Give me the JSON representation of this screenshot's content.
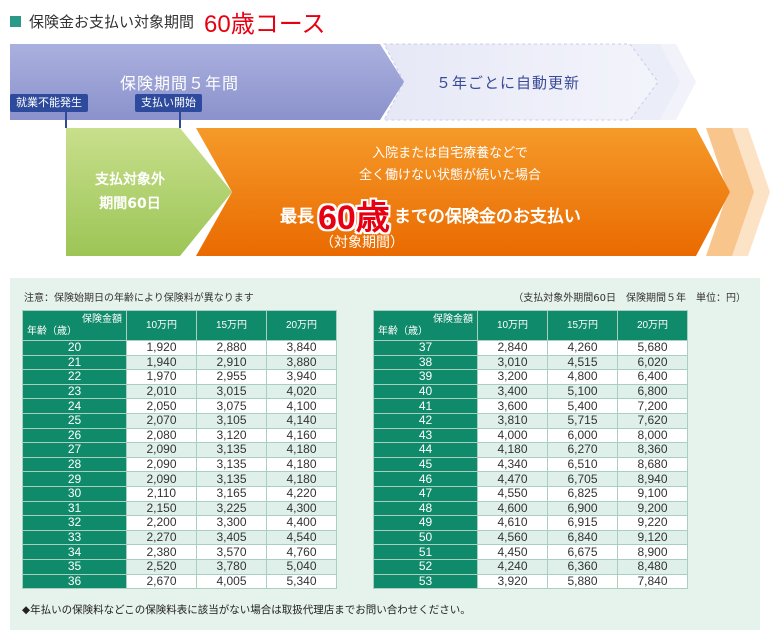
{
  "title": {
    "text": "保険金お支払い対象期間",
    "course": "60歳コース"
  },
  "diagram": {
    "period_label": "保険期間５年間",
    "renew_label": "５年ごとに自動更新",
    "tag_disability": "就業不能発生",
    "tag_payment": "支払い開始",
    "exclusion_line1": "支払対象外",
    "exclusion_line2": "期間60日",
    "condition_line1": "入院または自宅療養などで",
    "condition_line2": "全く働けない状態が続いた場合",
    "main_prefix": "最長",
    "main_age": "60歳",
    "main_suffix": "までの保険金のお支払い",
    "sub_label": "（対象期間）"
  },
  "table": {
    "note_left": "注意：保険始期日の年齢により保険料が異なります",
    "note_right": "（支払対象外期間60日　保険期間５年　単位：円）",
    "corner_top": "保険金額",
    "corner_bottom": "年齢（歳）",
    "amounts": [
      "10万円",
      "15万円",
      "20万円"
    ],
    "left_rows": [
      {
        "age": "20",
        "v": [
          "1,920",
          "2,880",
          "3,840"
        ]
      },
      {
        "age": "21",
        "v": [
          "1,940",
          "2,910",
          "3,880"
        ]
      },
      {
        "age": "22",
        "v": [
          "1,970",
          "2,955",
          "3,940"
        ]
      },
      {
        "age": "23",
        "v": [
          "2,010",
          "3,015",
          "4,020"
        ]
      },
      {
        "age": "24",
        "v": [
          "2,050",
          "3,075",
          "4,100"
        ]
      },
      {
        "age": "25",
        "v": [
          "2,070",
          "3,105",
          "4,140"
        ]
      },
      {
        "age": "26",
        "v": [
          "2,080",
          "3,120",
          "4,160"
        ]
      },
      {
        "age": "27",
        "v": [
          "2,090",
          "3,135",
          "4,180"
        ]
      },
      {
        "age": "28",
        "v": [
          "2,090",
          "3,135",
          "4,180"
        ]
      },
      {
        "age": "29",
        "v": [
          "2,090",
          "3,135",
          "4,180"
        ]
      },
      {
        "age": "30",
        "v": [
          "2,110",
          "3,165",
          "4,220"
        ]
      },
      {
        "age": "31",
        "v": [
          "2,150",
          "3,225",
          "4,300"
        ]
      },
      {
        "age": "32",
        "v": [
          "2,200",
          "3,300",
          "4,400"
        ]
      },
      {
        "age": "33",
        "v": [
          "2,270",
          "3,405",
          "4,540"
        ]
      },
      {
        "age": "34",
        "v": [
          "2,380",
          "3,570",
          "4,760"
        ]
      },
      {
        "age": "35",
        "v": [
          "2,520",
          "3,780",
          "5,040"
        ]
      },
      {
        "age": "36",
        "v": [
          "2,670",
          "4,005",
          "5,340"
        ]
      }
    ],
    "right_rows": [
      {
        "age": "37",
        "v": [
          "2,840",
          "4,260",
          "5,680"
        ]
      },
      {
        "age": "38",
        "v": [
          "3,010",
          "4,515",
          "6,020"
        ]
      },
      {
        "age": "39",
        "v": [
          "3,200",
          "4,800",
          "6,400"
        ]
      },
      {
        "age": "40",
        "v": [
          "3,400",
          "5,100",
          "6,800"
        ]
      },
      {
        "age": "41",
        "v": [
          "3,600",
          "5,400",
          "7,200"
        ]
      },
      {
        "age": "42",
        "v": [
          "3,810",
          "5,715",
          "7,620"
        ]
      },
      {
        "age": "43",
        "v": [
          "4,000",
          "6,000",
          "8,000"
        ]
      },
      {
        "age": "44",
        "v": [
          "4,180",
          "6,270",
          "8,360"
        ]
      },
      {
        "age": "45",
        "v": [
          "4,340",
          "6,510",
          "8,680"
        ]
      },
      {
        "age": "46",
        "v": [
          "4,470",
          "6,705",
          "8,940"
        ]
      },
      {
        "age": "47",
        "v": [
          "4,550",
          "6,825",
          "9,100"
        ]
      },
      {
        "age": "48",
        "v": [
          "4,600",
          "6,900",
          "9,200"
        ]
      },
      {
        "age": "49",
        "v": [
          "4,610",
          "6,915",
          "9,220"
        ]
      },
      {
        "age": "50",
        "v": [
          "4,560",
          "6,840",
          "9,120"
        ]
      },
      {
        "age": "51",
        "v": [
          "4,450",
          "6,675",
          "8,900"
        ]
      },
      {
        "age": "52",
        "v": [
          "4,240",
          "6,360",
          "8,480"
        ]
      },
      {
        "age": "53",
        "v": [
          "3,920",
          "5,880",
          "7,840"
        ]
      }
    ],
    "footnote": "◆年払いの保険料などこの保険料表に該当がない場合は取扱代理店までお問い合わせください。"
  }
}
